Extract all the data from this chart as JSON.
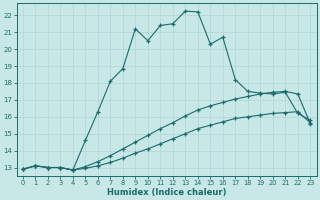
{
  "xlabel": "Humidex (Indice chaleur)",
  "bg_color": "#c8e8e8",
  "line_color": "#1a6b6b",
  "xlim": [
    -0.5,
    23.5
  ],
  "ylim": [
    12.5,
    22.7
  ],
  "xticks": [
    0,
    1,
    2,
    3,
    4,
    5,
    6,
    7,
    8,
    9,
    10,
    11,
    12,
    13,
    14,
    15,
    16,
    17,
    18,
    19,
    20,
    21,
    22,
    23
  ],
  "yticks": [
    13,
    14,
    15,
    16,
    17,
    18,
    19,
    20,
    21,
    22
  ],
  "grid_color": "#b0d4d4",
  "line1_x": [
    0,
    1,
    2,
    3,
    4,
    5,
    6,
    7,
    8,
    9,
    10,
    11,
    12,
    13,
    14,
    15,
    16,
    17,
    18,
    19,
    20,
    21,
    22,
    23
  ],
  "line1_y": [
    12.9,
    13.1,
    13.0,
    13.0,
    12.85,
    12.95,
    13.1,
    13.3,
    13.55,
    13.85,
    14.1,
    14.4,
    14.7,
    15.0,
    15.3,
    15.5,
    15.7,
    15.9,
    16.0,
    16.1,
    16.2,
    16.25,
    16.3,
    15.65
  ],
  "line2_x": [
    0,
    1,
    2,
    3,
    4,
    5,
    6,
    7,
    8,
    9,
    10,
    11,
    12,
    13,
    14,
    15,
    16,
    17,
    18,
    19,
    20,
    21,
    22,
    23
  ],
  "line2_y": [
    12.9,
    13.1,
    13.0,
    13.0,
    12.85,
    13.05,
    13.35,
    13.7,
    14.1,
    14.5,
    14.9,
    15.3,
    15.65,
    16.05,
    16.4,
    16.65,
    16.85,
    17.05,
    17.2,
    17.35,
    17.45,
    17.5,
    17.35,
    15.6
  ],
  "line3_x": [
    0,
    1,
    2,
    3,
    4,
    5,
    6,
    7,
    8,
    9,
    10,
    11,
    12,
    13,
    14,
    15,
    16,
    17,
    18,
    19,
    20,
    21,
    22,
    23
  ],
  "line3_y": [
    12.9,
    13.1,
    13.0,
    13.0,
    12.85,
    14.6,
    16.3,
    18.1,
    18.85,
    21.2,
    20.5,
    21.4,
    21.5,
    22.25,
    22.2,
    20.3,
    20.7,
    18.2,
    17.5,
    17.4,
    17.35,
    17.45,
    16.2,
    15.8
  ]
}
